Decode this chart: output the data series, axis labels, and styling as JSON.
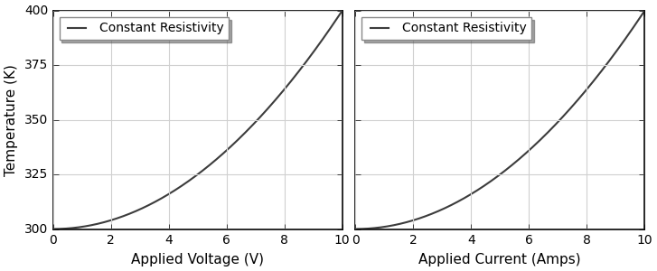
{
  "T0": 300,
  "V_max": 10,
  "I_max": 10,
  "T_max": 400,
  "T_min": 300,
  "voltage_label": "Applied Voltage (V)",
  "current_label": "Applied Current (Amps)",
  "ylabel": "Temperature (K)",
  "legend_label": "Constant Resistivity",
  "line_color": "#3c3c3c",
  "line_width": 1.5,
  "grid_color": "#d0d0d0",
  "background_color": "#ffffff",
  "axes_face_color": "#ffffff",
  "xticks_voltage": [
    0,
    2,
    4,
    6,
    8,
    10
  ],
  "xticks_current": [
    0,
    2,
    4,
    6,
    8,
    10
  ],
  "yticks": [
    300,
    325,
    350,
    375,
    400
  ],
  "ylabel_fontsize": 11,
  "xlabel_fontsize": 11,
  "legend_fontsize": 10,
  "tick_fontsize": 10,
  "figsize": [
    7.27,
    3.0
  ],
  "dpi": 100,
  "spine_color": "#000000",
  "spine_linewidth": 1.2
}
